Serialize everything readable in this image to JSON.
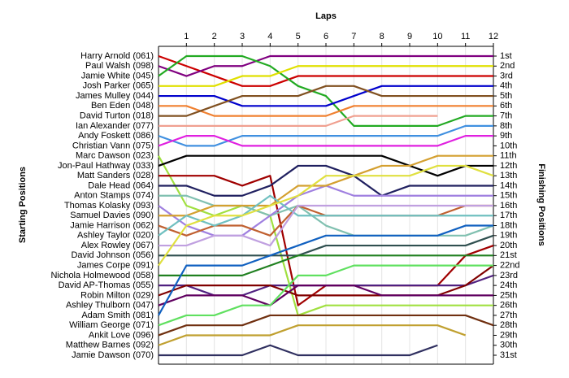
{
  "chart_data": {
    "type": "line",
    "title": "Laps",
    "ylabel": "Starting Positions",
    "y2label": "Finishing Positions",
    "x": [
      0,
      1,
      2,
      3,
      4,
      5,
      6,
      7,
      8,
      9,
      10,
      11,
      12
    ],
    "xlim": [
      0,
      12
    ],
    "xticks": [
      1,
      2,
      3,
      4,
      5,
      6,
      7,
      8,
      9,
      10,
      11,
      12
    ],
    "ylim": [
      1,
      31
    ],
    "inverted": true,
    "grid": true,
    "yticks": [
      {
        "value": 1,
        "label": "1st"
      },
      {
        "value": 2,
        "label": "2nd"
      },
      {
        "value": 3,
        "label": "3rd"
      },
      {
        "value": 4,
        "label": "4th"
      },
      {
        "value": 5,
        "label": "5th"
      },
      {
        "value": 6,
        "label": "6th"
      },
      {
        "value": 7,
        "label": "7th"
      },
      {
        "value": 8,
        "label": "8th"
      },
      {
        "value": 9,
        "label": "9th"
      },
      {
        "value": 10,
        "label": "10th"
      },
      {
        "value": 11,
        "label": "11th"
      },
      {
        "value": 12,
        "label": "12th"
      },
      {
        "value": 13,
        "label": "13th"
      },
      {
        "value": 14,
        "label": "14th"
      },
      {
        "value": 15,
        "label": "15th"
      },
      {
        "value": 16,
        "label": "16th"
      },
      {
        "value": 17,
        "label": "17th"
      },
      {
        "value": 18,
        "label": "18th"
      },
      {
        "value": 19,
        "label": "19th"
      },
      {
        "value": 20,
        "label": "20th"
      },
      {
        "value": 21,
        "label": "21st"
      },
      {
        "value": 22,
        "label": "22nd"
      },
      {
        "value": 23,
        "label": "23rd"
      },
      {
        "value": 24,
        "label": "24th"
      },
      {
        "value": 25,
        "label": "25th"
      },
      {
        "value": 26,
        "label": "26th"
      },
      {
        "value": 27,
        "label": "27th"
      },
      {
        "value": 28,
        "label": "28th"
      },
      {
        "value": 29,
        "label": "29th"
      },
      {
        "value": 30,
        "label": "30th"
      },
      {
        "value": 31,
        "label": "31st"
      }
    ],
    "series": [
      {
        "name": "Harry Arnold (061)",
        "color": "#cc0000",
        "values": [
          1,
          2,
          3,
          4,
          4,
          3,
          3,
          3,
          3,
          3,
          3,
          3,
          3
        ]
      },
      {
        "name": "Paul Walsh (098)",
        "color": "#800080",
        "values": [
          2,
          3,
          2,
          2,
          1,
          1,
          1,
          1,
          1,
          1,
          1,
          1,
          1
        ]
      },
      {
        "name": "Jamie White (045)",
        "color": "#22aa22",
        "values": [
          3,
          1,
          1,
          1,
          2,
          4,
          5,
          8,
          8,
          8,
          8,
          7,
          7
        ]
      },
      {
        "name": "Josh Parker (065)",
        "color": "#e0e000",
        "values": [
          4,
          4,
          4,
          3,
          3,
          2,
          2,
          2,
          2,
          2,
          2,
          2,
          2
        ]
      },
      {
        "name": "James Mulley (044)",
        "color": "#0000cc",
        "values": [
          5,
          5,
          5,
          6,
          6,
          6,
          6,
          5,
          4,
          4,
          4,
          4,
          4
        ]
      },
      {
        "name": "Ben Eden (048)",
        "color": "#f08030",
        "values": [
          6,
          6,
          7,
          7,
          7,
          7,
          7,
          6,
          6,
          6,
          6,
          6,
          6
        ]
      },
      {
        "name": "David Turton (018)",
        "color": "#805020",
        "values": [
          7,
          7,
          6,
          5,
          5,
          5,
          4,
          4,
          5,
          5,
          5,
          5,
          5
        ]
      },
      {
        "name": "Ian Alexander (077)",
        "color": "#f0a090",
        "values": [
          8,
          8,
          8,
          8,
          8,
          8,
          8,
          7,
          7,
          7,
          7,
          null,
          null
        ]
      },
      {
        "name": "Andy Foskett (086)",
        "color": "#4090e0",
        "values": [
          9,
          10,
          10,
          9,
          9,
          9,
          9,
          9,
          9,
          9,
          9,
          8,
          8
        ]
      },
      {
        "name": "Christian Vann (075)",
        "color": "#e020e0",
        "values": [
          10,
          9,
          9,
          10,
          10,
          10,
          10,
          10,
          10,
          10,
          10,
          9,
          9
        ]
      },
      {
        "name": "Marc Dawson (023)",
        "color": "#a0e040",
        "values": [
          11,
          16,
          17,
          16,
          17,
          27,
          26,
          26,
          26,
          26,
          26,
          26,
          26
        ]
      },
      {
        "name": "Jon-Paul Hathway (033)",
        "color": "#000000",
        "values": [
          12,
          11,
          11,
          11,
          11,
          11,
          11,
          11,
          11,
          12,
          13,
          12,
          12
        ]
      },
      {
        "name": "Matt Sanders (028)",
        "color": "#a00000",
        "values": [
          13,
          13,
          13,
          14,
          13,
          26,
          24,
          24,
          24,
          24,
          24,
          21,
          20
        ]
      },
      {
        "name": "Dale Head (064)",
        "color": "#202060",
        "values": [
          14,
          14,
          15,
          15,
          14,
          12,
          12,
          13,
          15,
          14,
          14,
          14,
          14
        ]
      },
      {
        "name": "Anton Stamps (074)",
        "color": "#80c0b0",
        "values": [
          15,
          15,
          16,
          16,
          17,
          16,
          18,
          19,
          19,
          19,
          19,
          19,
          18
        ]
      },
      {
        "name": "Thomas Kolasky (093)",
        "color": "#a080e0",
        "values": [
          16,
          18,
          19,
          19,
          17,
          15,
          14,
          15,
          15,
          15,
          15,
          15,
          15
        ]
      },
      {
        "name": "Samuel Davies (090)",
        "color": "#d4a030",
        "values": [
          17,
          17,
          16,
          16,
          16,
          14,
          14,
          13,
          12,
          12,
          11,
          11,
          11
        ]
      },
      {
        "name": "Jamie Harrison (062)",
        "color": "#c06030",
        "values": [
          18,
          19,
          18,
          18,
          19,
          16,
          17,
          17,
          17,
          17,
          17,
          16,
          16
        ]
      },
      {
        "name": "Ashley Taylor (020)",
        "color": "#70c0c0",
        "values": [
          19,
          17,
          18,
          17,
          15,
          17,
          17,
          17,
          17,
          17,
          17,
          17,
          17
        ]
      },
      {
        "name": "Alex Rowley (067)",
        "color": "#c0a0e0",
        "values": [
          20,
          20,
          19,
          19,
          20,
          16,
          16,
          16,
          16,
          16,
          16,
          16,
          16
        ]
      },
      {
        "name": "David Johnson (056)",
        "color": "#305050",
        "values": [
          21,
          21,
          21,
          21,
          21,
          21,
          20,
          20,
          20,
          20,
          20,
          20,
          19
        ]
      },
      {
        "name": "James Corpe (091)",
        "color": "#e0e040",
        "values": [
          22,
          18,
          17,
          17,
          16,
          15,
          13,
          13,
          13,
          13,
          12,
          12,
          13
        ]
      },
      {
        "name": "Nichola Holmewood (058)",
        "color": "#208020",
        "values": [
          23,
          23,
          23,
          23,
          22,
          21,
          21,
          21,
          21,
          21,
          21,
          21,
          21
        ]
      },
      {
        "name": "David AP-Thomas (055)",
        "color": "#502080",
        "values": [
          24,
          24,
          25,
          25,
          24,
          24,
          24,
          24,
          24,
          24,
          24,
          24,
          23
        ]
      },
      {
        "name": "Robin Milton (029)",
        "color": "#800000",
        "values": [
          25,
          24,
          24,
          24,
          24,
          25,
          25,
          25,
          25,
          25,
          25,
          24,
          22
        ]
      },
      {
        "name": "Ashley Thulborn (047)",
        "color": "#600060",
        "values": [
          26,
          25,
          25,
          25,
          26,
          24,
          24,
          24,
          25,
          25,
          25,
          25,
          25
        ]
      },
      {
        "name": "Adam Smith (081)",
        "color": "#1060c0",
        "values": [
          27,
          22,
          22,
          22,
          21,
          20,
          19,
          19,
          19,
          19,
          19,
          18,
          18
        ]
      },
      {
        "name": "William George (071)",
        "color": "#60e060",
        "values": [
          28,
          27,
          27,
          26,
          26,
          23,
          23,
          22,
          22,
          22,
          22,
          22,
          22
        ]
      },
      {
        "name": "Ankit Love (096)",
        "color": "#703010",
        "values": [
          29,
          28,
          28,
          28,
          27,
          27,
          27,
          27,
          27,
          27,
          27,
          27,
          28
        ]
      },
      {
        "name": "Matthew Barnes (092)",
        "color": "#c0a030",
        "values": [
          30,
          29,
          29,
          29,
          29,
          28,
          28,
          28,
          28,
          28,
          28,
          29,
          null
        ]
      },
      {
        "name": "Jamie Dawson (070)",
        "color": "#303060",
        "values": [
          31,
          31,
          31,
          31,
          30,
          31,
          31,
          31,
          31,
          31,
          30,
          null,
          null
        ]
      }
    ]
  }
}
